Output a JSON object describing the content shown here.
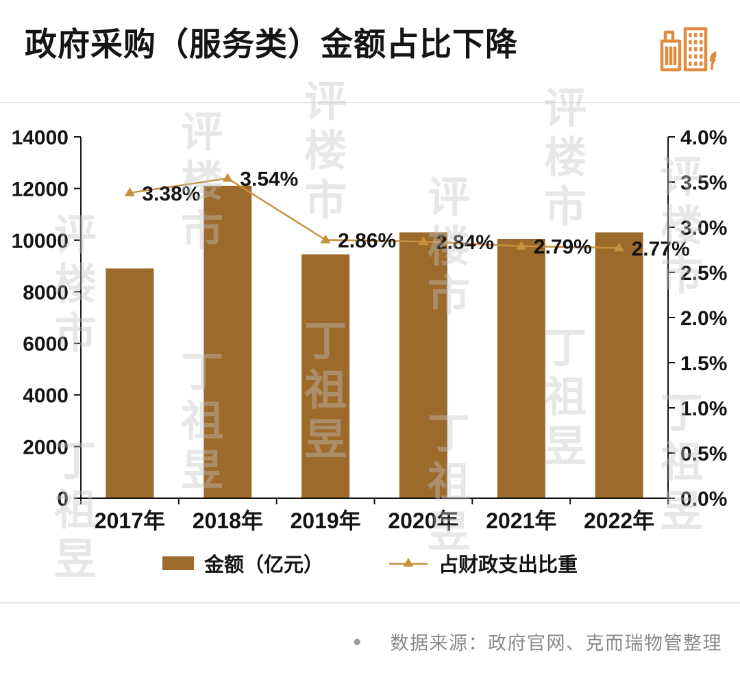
{
  "page": {
    "title": "政府采购（服务类）金额占比下降",
    "watermark_text": "丁祖昱评楼市",
    "source": {
      "bullet": "●",
      "text": "数据来源：政府官网、克而瑞物管整理"
    }
  },
  "icons": {
    "header_icon": "city-buildings-with-sprout"
  },
  "colors": {
    "bar": "#9C6B2C",
    "line": "#C6913F",
    "axis": "#141414",
    "title": "#141414",
    "divider": "#E6E6E6",
    "source_text": "#8A8A8A",
    "icon": "#DC8C3C"
  },
  "chart_data": {
    "type": "bar",
    "title": "政府采购（服务类）金额占比下降",
    "categories": [
      "2017年",
      "2018年",
      "2019年",
      "2020年",
      "2021年",
      "2022年"
    ],
    "series": [
      {
        "name": "金额（亿元）",
        "type": "bar",
        "axis": "left",
        "values": [
          8900,
          12100,
          9450,
          10300,
          10050,
          10300
        ]
      },
      {
        "name": "占财政支出比重",
        "type": "line",
        "axis": "right",
        "values": [
          3.38,
          3.54,
          2.86,
          2.84,
          2.79,
          2.77
        ],
        "point_labels": [
          "3.38%",
          "3.54%",
          "2.86%",
          "2.84%",
          "2.79%",
          "2.77%"
        ]
      }
    ],
    "left_axis": {
      "min": 0,
      "max": 14000,
      "step": 2000,
      "tick_labels": [
        "0",
        "2000",
        "4000",
        "6000",
        "8000",
        "10000",
        "12000",
        "14000"
      ]
    },
    "right_axis": {
      "min": 0,
      "max": 4,
      "step": 0.5,
      "tick_labels": [
        "0.0%",
        "0.5%",
        "1.0%",
        "1.5%",
        "2.0%",
        "2.5%",
        "3.0%",
        "3.5%",
        "4.0%"
      ]
    },
    "grid": false,
    "legend_position": "bottom"
  }
}
